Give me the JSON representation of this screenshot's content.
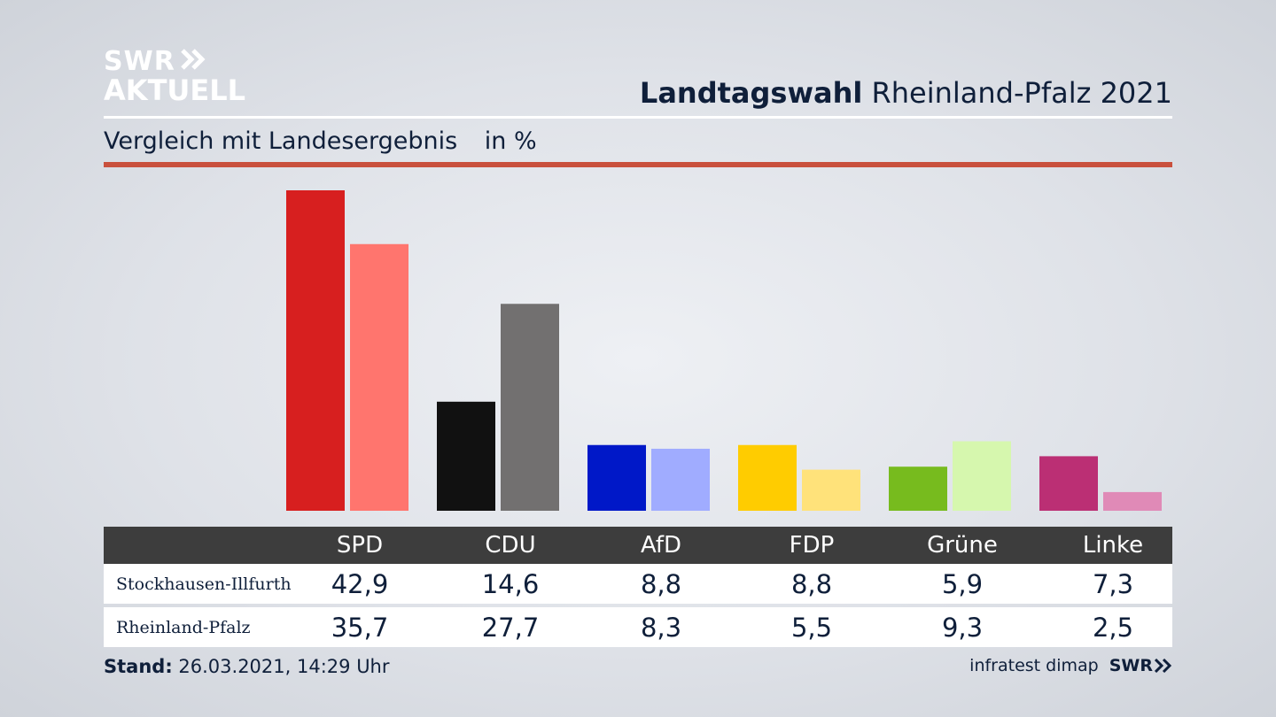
{
  "header": {
    "logo_line1": "SWR",
    "logo_line2": "AKTUELL",
    "title_bold": "Landtagswahl",
    "title_rest": "Rheinland-Pfalz 2021",
    "subtitle": "Vergleich mit Landesergebnis",
    "unit": "in %"
  },
  "chart_data": {
    "type": "bar",
    "categories": [
      "SPD",
      "CDU",
      "AfD",
      "FDP",
      "Grüne",
      "Linke"
    ],
    "series": [
      {
        "name": "Stockhausen-Illfurth",
        "values": [
          42.9,
          14.6,
          8.8,
          8.8,
          5.9,
          7.3
        ],
        "colors": [
          "#d71f1f",
          "#111111",
          "#0018c8",
          "#ffcc00",
          "#77bb1e",
          "#bb2f74"
        ]
      },
      {
        "name": "Rheinland-Pfalz",
        "values": [
          35.7,
          27.7,
          8.3,
          5.5,
          9.3,
          2.5
        ],
        "colors": [
          "#ff756e",
          "#727070",
          "#a0acff",
          "#ffe27a",
          "#d6f7ae",
          "#e08ab7"
        ]
      }
    ],
    "value_labels": [
      [
        "42,9",
        "14,6",
        "8,8",
        "8,8",
        "5,9",
        "7,3"
      ],
      [
        "35,7",
        "27,7",
        "8,3",
        "5,5",
        "9,3",
        "2,5"
      ]
    ],
    "ylim": [
      0,
      42.9
    ],
    "grid": false
  },
  "footer": {
    "stand_label": "Stand:",
    "stand_value": "26.03.2021, 14:29 Uhr",
    "source": "infratest dimap",
    "brand": "SWR"
  },
  "colors": {
    "header_row": "#3d3d3d",
    "accent_rule": "#c9503d",
    "text": "#0f1f3a"
  }
}
